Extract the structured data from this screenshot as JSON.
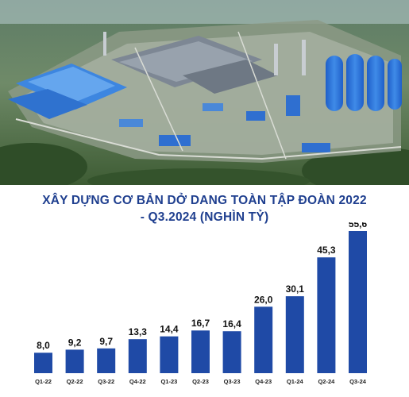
{
  "chart_data": {
    "type": "bar",
    "title_line1": "XÂY DỰNG CƠ BẢN DỞ DANG TOÀN TẬP ĐOÀN 2022",
    "title_line2": "- Q3.2024 (NGHÌN TỶ)",
    "categories": [
      "Q1-22",
      "Q2-22",
      "Q3-22",
      "Q4-22",
      "Q1-23",
      "Q2-23",
      "Q3-23",
      "Q4-23",
      "Q1-24",
      "Q2-24",
      "Q3-24"
    ],
    "values": [
      8.0,
      9.2,
      9.7,
      13.3,
      14.4,
      16.7,
      16.4,
      26.0,
      30.1,
      45.3,
      55.6
    ],
    "value_labels": [
      "8,0",
      "9,2",
      "9,7",
      "13,3",
      "14,4",
      "16,7",
      "16,4",
      "26,0",
      "30,1",
      "45,3",
      "55,6"
    ],
    "bar_color": "#1f4aa6",
    "ylim": [
      0,
      55.6
    ],
    "grid": false,
    "legend": "none"
  },
  "photo": {
    "description_icon": "industrial-complex-aerial-image",
    "sky_color": "#bcd2dc",
    "forest_color": "#47673a",
    "roof_color": "#2f6fd0"
  }
}
